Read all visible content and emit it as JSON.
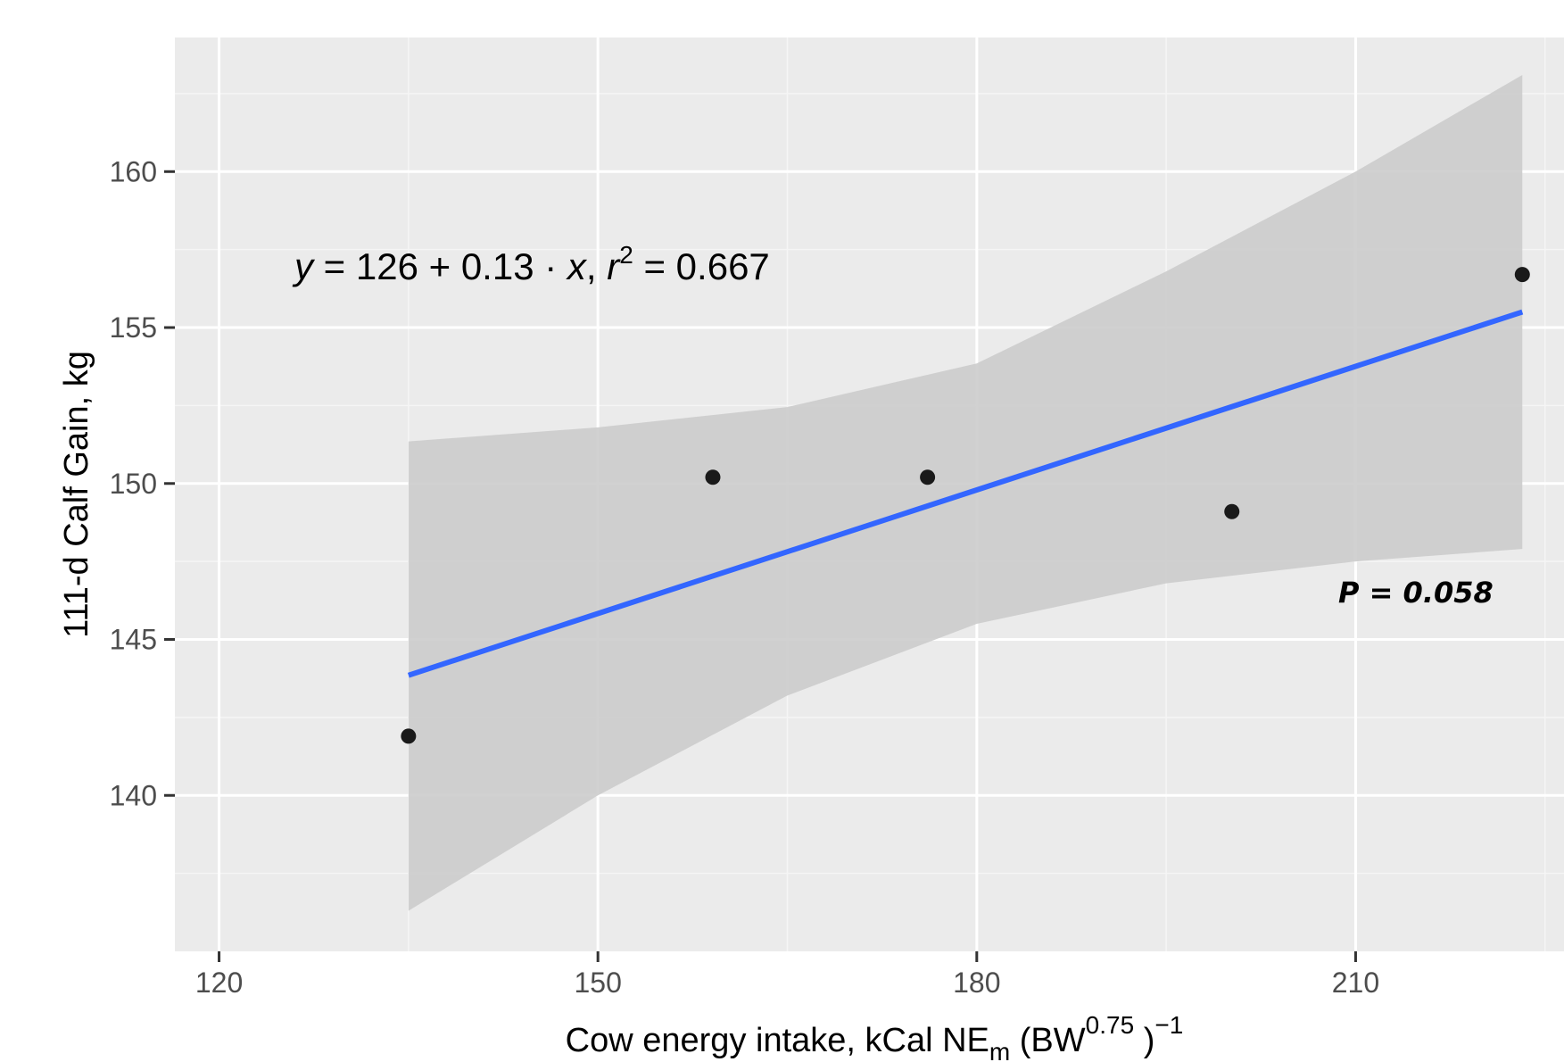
{
  "chart_data": {
    "type": "scatter",
    "title": "",
    "x_axis": {
      "label_main": "Cow energy intake, kCal NE",
      "label_sub": "m",
      "label_mid": " (BW",
      "label_sup1": "0.75",
      "label_close": " )",
      "label_sup2": "−1",
      "range": [
        116.5,
        226.5
      ],
      "ticks": [
        120,
        150,
        180,
        210
      ],
      "tick_labels": [
        "120",
        "150",
        "180",
        "210"
      ]
    },
    "y_axis": {
      "label": "111-d Calf Gain, kg",
      "range": [
        135.0,
        164.3
      ],
      "ticks": [
        140,
        145,
        150,
        155,
        160
      ],
      "tick_labels": [
        "140",
        "145",
        "150",
        "155",
        "160"
      ]
    },
    "points": [
      {
        "x": 135.0,
        "y": 141.9
      },
      {
        "x": 159.1,
        "y": 150.2
      },
      {
        "x": 176.1,
        "y": 150.2
      },
      {
        "x": 200.2,
        "y": 149.1
      },
      {
        "x": 223.2,
        "y": 156.7
      }
    ],
    "regression": {
      "intercept": 126,
      "slope": 0.13,
      "line": [
        {
          "x": 135.0,
          "y": 143.85
        },
        {
          "x": 223.2,
          "y": 155.5
        }
      ],
      "confidence_band": [
        {
          "x": 135.0,
          "lower": 136.3,
          "upper": 151.35
        },
        {
          "x": 150.0,
          "lower": 140.0,
          "upper": 151.8
        },
        {
          "x": 165.0,
          "lower": 143.2,
          "upper": 152.45
        },
        {
          "x": 180.0,
          "lower": 145.5,
          "upper": 153.85
        },
        {
          "x": 195.0,
          "lower": 146.8,
          "upper": 156.8
        },
        {
          "x": 210.0,
          "lower": 147.5,
          "upper": 160.0
        },
        {
          "x": 223.2,
          "lower": 147.9,
          "upper": 163.1
        }
      ],
      "equation": {
        "y": "y",
        "equals": " = ",
        "lhs": "126 + 0.13 · ",
        "x": "x",
        "comma": ",  ",
        "r": "r",
        "r_sup": "2",
        "r_value": " = 0.667"
      },
      "p_value_label": "P = 0.058"
    },
    "grid": true,
    "legend": "none",
    "colors": {
      "panel": "#ebebeb",
      "grid_major": "#ffffff",
      "grid_minor": "#f5f5f5",
      "band": "#cccccc",
      "line": "#3366ff",
      "point": "#1a1a1a"
    }
  }
}
